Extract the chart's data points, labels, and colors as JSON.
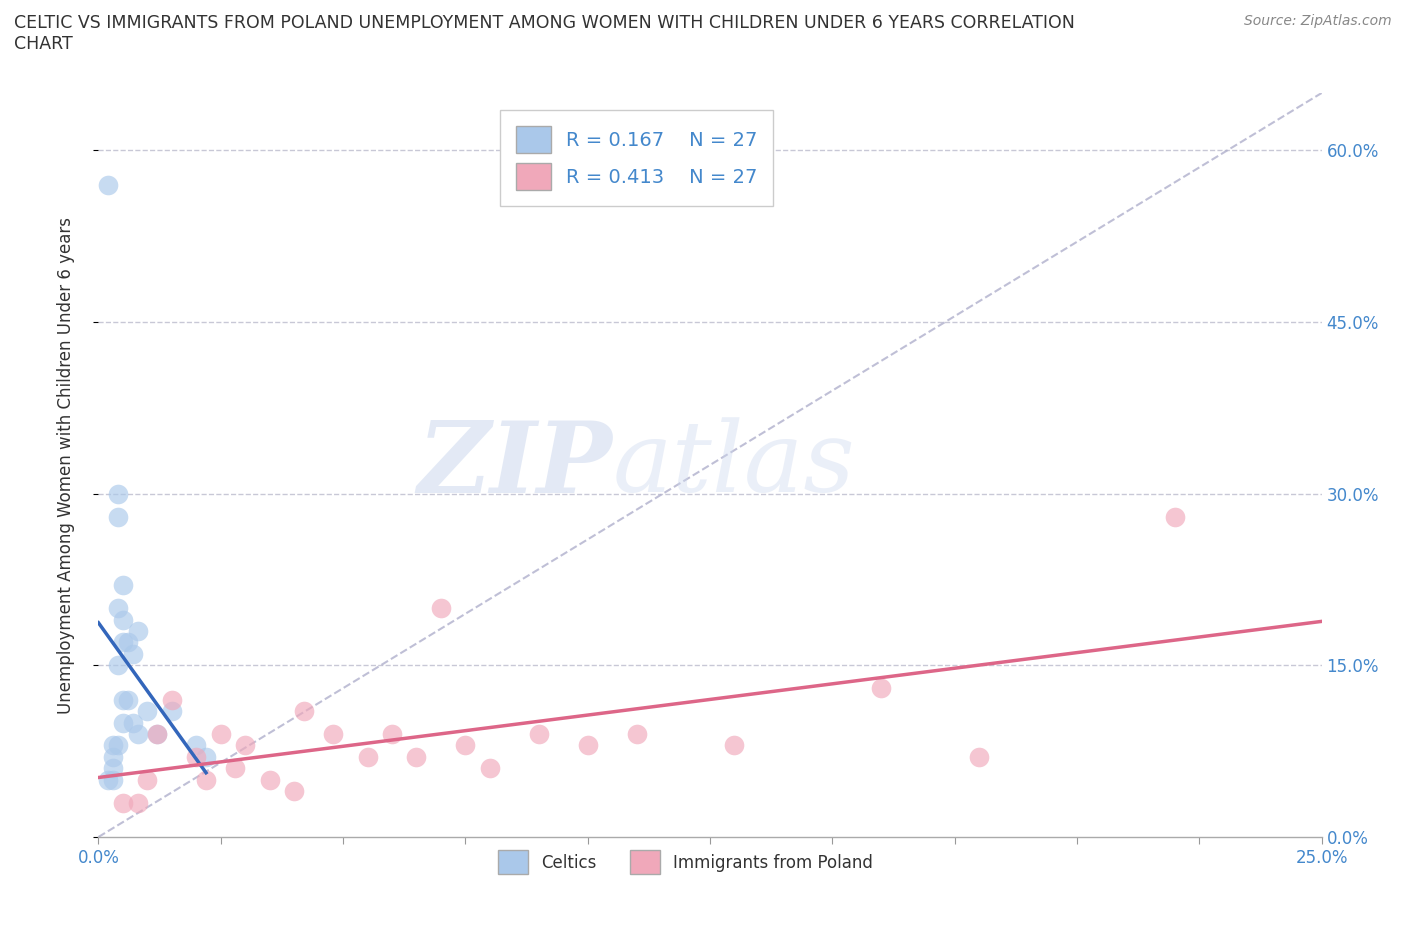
{
  "title_line1": "CELTIC VS IMMIGRANTS FROM POLAND UNEMPLOYMENT AMONG WOMEN WITH CHILDREN UNDER 6 YEARS CORRELATION",
  "title_line2": "CHART",
  "source": "Source: ZipAtlas.com",
  "ylabel": "Unemployment Among Women with Children Under 6 years",
  "xlim": [
    0.0,
    0.25
  ],
  "ylim": [
    0.0,
    0.65
  ],
  "yticks": [
    0.0,
    0.15,
    0.3,
    0.45,
    0.6
  ],
  "ytick_labels": [
    "0.0%",
    "15.0%",
    "30.0%",
    "45.0%",
    "60.0%"
  ],
  "xtick_labels_show": [
    "0.0%",
    "",
    "",
    "",
    "",
    "",
    "",
    "",
    "",
    "",
    "25.0%"
  ],
  "celtics_x": [
    0.002,
    0.002,
    0.003,
    0.003,
    0.003,
    0.003,
    0.004,
    0.004,
    0.004,
    0.004,
    0.004,
    0.005,
    0.005,
    0.005,
    0.005,
    0.005,
    0.006,
    0.006,
    0.007,
    0.007,
    0.008,
    0.008,
    0.01,
    0.012,
    0.015,
    0.02,
    0.022
  ],
  "celtics_y": [
    0.57,
    0.05,
    0.08,
    0.07,
    0.06,
    0.05,
    0.3,
    0.28,
    0.2,
    0.15,
    0.08,
    0.22,
    0.19,
    0.17,
    0.12,
    0.1,
    0.17,
    0.12,
    0.16,
    0.1,
    0.18,
    0.09,
    0.11,
    0.09,
    0.11,
    0.08,
    0.07
  ],
  "poland_x": [
    0.005,
    0.008,
    0.01,
    0.012,
    0.015,
    0.02,
    0.022,
    0.025,
    0.028,
    0.03,
    0.035,
    0.04,
    0.042,
    0.048,
    0.055,
    0.06,
    0.065,
    0.07,
    0.075,
    0.08,
    0.09,
    0.1,
    0.11,
    0.13,
    0.16,
    0.18,
    0.22
  ],
  "poland_y": [
    0.03,
    0.03,
    0.05,
    0.09,
    0.12,
    0.07,
    0.05,
    0.09,
    0.06,
    0.08,
    0.05,
    0.04,
    0.11,
    0.09,
    0.07,
    0.09,
    0.07,
    0.2,
    0.08,
    0.06,
    0.09,
    0.08,
    0.09,
    0.08,
    0.13,
    0.07,
    0.28
  ],
  "celtics_color": "#aac8ea",
  "poland_color": "#f0a8ba",
  "celtics_line_color": "#3366bb",
  "poland_line_color": "#dd6688",
  "diagonal_color": "#b0b0cc",
  "R_celtics": 0.167,
  "N_celtics": 27,
  "R_poland": 0.413,
  "N_poland": 27,
  "background_color": "#ffffff",
  "tick_color": "#4488cc",
  "label_color": "#333333",
  "source_color": "#888888",
  "grid_color": "#bbbbcc"
}
